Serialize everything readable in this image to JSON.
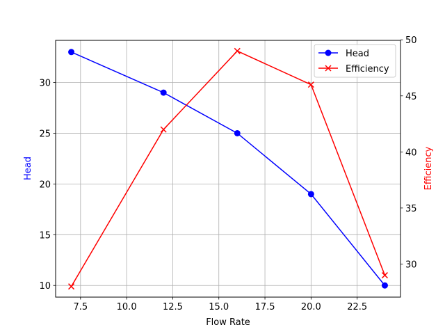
{
  "chart_data": {
    "type": "line",
    "title": "",
    "xlabel": "Flow Rate",
    "x": [
      7,
      12,
      16,
      20,
      24
    ],
    "xlim": [
      6.15,
      24.85
    ],
    "xticks": [
      "7.5",
      "10.0",
      "12.5",
      "15.0",
      "17.5",
      "20.0",
      "22.5"
    ],
    "grid": true,
    "legend_position": "upper right",
    "series": [
      {
        "name": "Head",
        "axis": "left",
        "color": "#0000ff",
        "marker": "circle",
        "values": [
          33,
          29,
          25,
          19,
          10
        ]
      },
      {
        "name": "Efficiency",
        "axis": "right",
        "color": "#ff0000",
        "marker": "x",
        "values": [
          28,
          42,
          49,
          46,
          29
        ]
      }
    ],
    "ylabel_left": "Head",
    "ylim_left": [
      8.85,
      34.15
    ],
    "yticks_left": [
      "10",
      "15",
      "20",
      "25",
      "30"
    ],
    "ylabel_right": "Efficiency",
    "ylim_right": [
      27.05,
      49.95
    ],
    "yticks_right": [
      "30",
      "35",
      "40",
      "45",
      "50"
    ]
  },
  "legend": {
    "items": [
      {
        "label": "Head",
        "color": "#0000ff"
      },
      {
        "label": "Efficiency",
        "color": "#ff0000"
      }
    ]
  }
}
